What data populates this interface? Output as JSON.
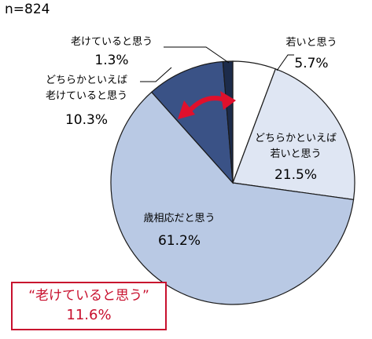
{
  "sample_size": "n=824",
  "chart_data": {
    "type": "pie",
    "title": "",
    "slices": [
      {
        "label": "若いと思う",
        "value": 5.7,
        "value_label": "5.7%",
        "color": "#ffffff"
      },
      {
        "label": "どちらかといえば\n若いと思う",
        "value": 21.5,
        "value_label": "21.5%",
        "color": "#dfe6f3"
      },
      {
        "label": "歳相応だと思う",
        "value": 61.2,
        "value_label": "61.2%",
        "color": "#b9c9e4"
      },
      {
        "label": "どちらかといえば\n老けていると思う",
        "value": 10.3,
        "value_label": "10.3%",
        "color": "#3a5286"
      },
      {
        "label": "老けていると思う",
        "value": 1.3,
        "value_label": "1.3%",
        "color": "#1c2b4a"
      }
    ],
    "callout": {
      "label": "“老けていると思う”",
      "value": "11.6%",
      "color": "#c8102e"
    },
    "arrow_color": "#e0102c"
  }
}
